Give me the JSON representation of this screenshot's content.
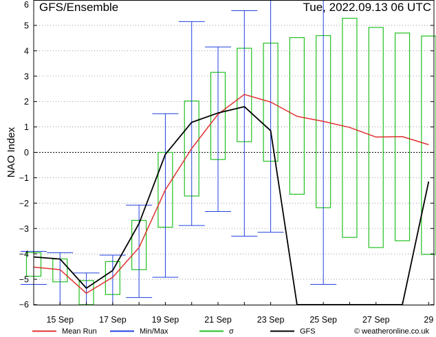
{
  "title": "GFS/Ensemble",
  "timestamp": "Tue, 2022.09.13   06 UTC",
  "ylabel": "NAO Index",
  "colors": {
    "mean": "#e03030",
    "minmax": "#2040e0",
    "sigma": "#20c020",
    "gfs": "#000000",
    "grid": "#888888"
  },
  "legend": [
    {
      "key": "mean",
      "label": "Mean Run"
    },
    {
      "key": "minmax",
      "label": "Min/Max"
    },
    {
      "key": "sigma",
      "label": "σ"
    },
    {
      "key": "gfs",
      "label": "GFS"
    }
  ],
  "watermark": "© weatheronline.co.uk",
  "chart_data": {
    "type": "line",
    "ylabel": "NAO Index",
    "ylim": [
      -6,
      6
    ],
    "xlim": [
      14,
      29.2
    ],
    "yticks": [
      -6,
      -5,
      -4,
      -3,
      -2,
      -1,
      0,
      1,
      2,
      3,
      4,
      5,
      6
    ],
    "xticks": [
      {
        "x": 15,
        "label": "15 Sep"
      },
      {
        "x": 17,
        "label": "17 Sep"
      },
      {
        "x": 19,
        "label": "19 Sep"
      },
      {
        "x": 21,
        "label": "21 Sep"
      },
      {
        "x": 23,
        "label": "23 Sep"
      },
      {
        "x": 25,
        "label": "25 Sep"
      },
      {
        "x": 27,
        "label": "27 Sep"
      },
      {
        "x": 29,
        "label": "29"
      }
    ],
    "grid": true,
    "x": [
      14,
      15,
      16,
      17,
      18,
      19,
      20,
      21,
      22,
      23,
      24,
      25,
      26,
      27,
      28,
      29
    ],
    "series": [
      {
        "name": "Mean Run",
        "values": [
          -4.52,
          -4.62,
          -5.55,
          -4.92,
          -3.75,
          -1.48,
          0.15,
          1.5,
          2.28,
          1.98,
          1.42,
          1.22,
          0.98,
          0.6,
          0.62,
          0.3
        ]
      },
      {
        "name": "GFS",
        "values": [
          -4.12,
          -4.2,
          -5.35,
          -4.65,
          -2.8,
          -0.08,
          1.18,
          1.55,
          1.8,
          0.85,
          -6.0,
          -6.0,
          -6.0,
          -6.0,
          -6.0,
          -1.15
        ]
      }
    ],
    "minmax": [
      {
        "x": 14,
        "min": -5.2,
        "max": -3.9
      },
      {
        "x": 15,
        "min": -6.0,
        "max": -3.95
      },
      {
        "x": 16,
        "min": -6.0,
        "max": -4.75
      },
      {
        "x": 17,
        "min": -6.0,
        "max": -4.05
      },
      {
        "x": 18,
        "min": -5.72,
        "max": -2.08
      },
      {
        "x": 19,
        "min": -4.92,
        "max": 1.52
      },
      {
        "x": 20,
        "min": -2.88,
        "max": 5.15
      },
      {
        "x": 21,
        "min": -2.33,
        "max": 4.15
      },
      {
        "x": 22,
        "min": -3.3,
        "max": 5.58
      },
      {
        "x": 23,
        "min": -3.15,
        "max": 6.0
      },
      {
        "x": 25,
        "min": -5.2,
        "max": 6.0
      }
    ],
    "sigma": [
      {
        "x": 14,
        "low": -4.88,
        "high": -3.95
      },
      {
        "x": 15,
        "low": -5.1,
        "high": -4.2
      },
      {
        "x": 16,
        "low": -6.0,
        "high": -5.05
      },
      {
        "x": 17,
        "low": -5.6,
        "high": -4.3
      },
      {
        "x": 18,
        "low": -4.62,
        "high": -2.68
      },
      {
        "x": 19,
        "low": -2.95,
        "high": 0.0
      },
      {
        "x": 20,
        "low": -1.72,
        "high": 2.02
      },
      {
        "x": 21,
        "low": -0.28,
        "high": 3.15
      },
      {
        "x": 22,
        "low": 0.42,
        "high": 4.1
      },
      {
        "x": 23,
        "low": -0.35,
        "high": 4.3
      },
      {
        "x": 24,
        "low": -1.65,
        "high": 4.52
      },
      {
        "x": 25,
        "low": -2.18,
        "high": 4.6
      },
      {
        "x": 26,
        "low": -3.35,
        "high": 5.28
      },
      {
        "x": 27,
        "low": -3.75,
        "high": 4.92
      },
      {
        "x": 28,
        "low": -3.48,
        "high": 4.7
      },
      {
        "x": 29,
        "low": -4.02,
        "high": 4.58
      }
    ]
  }
}
